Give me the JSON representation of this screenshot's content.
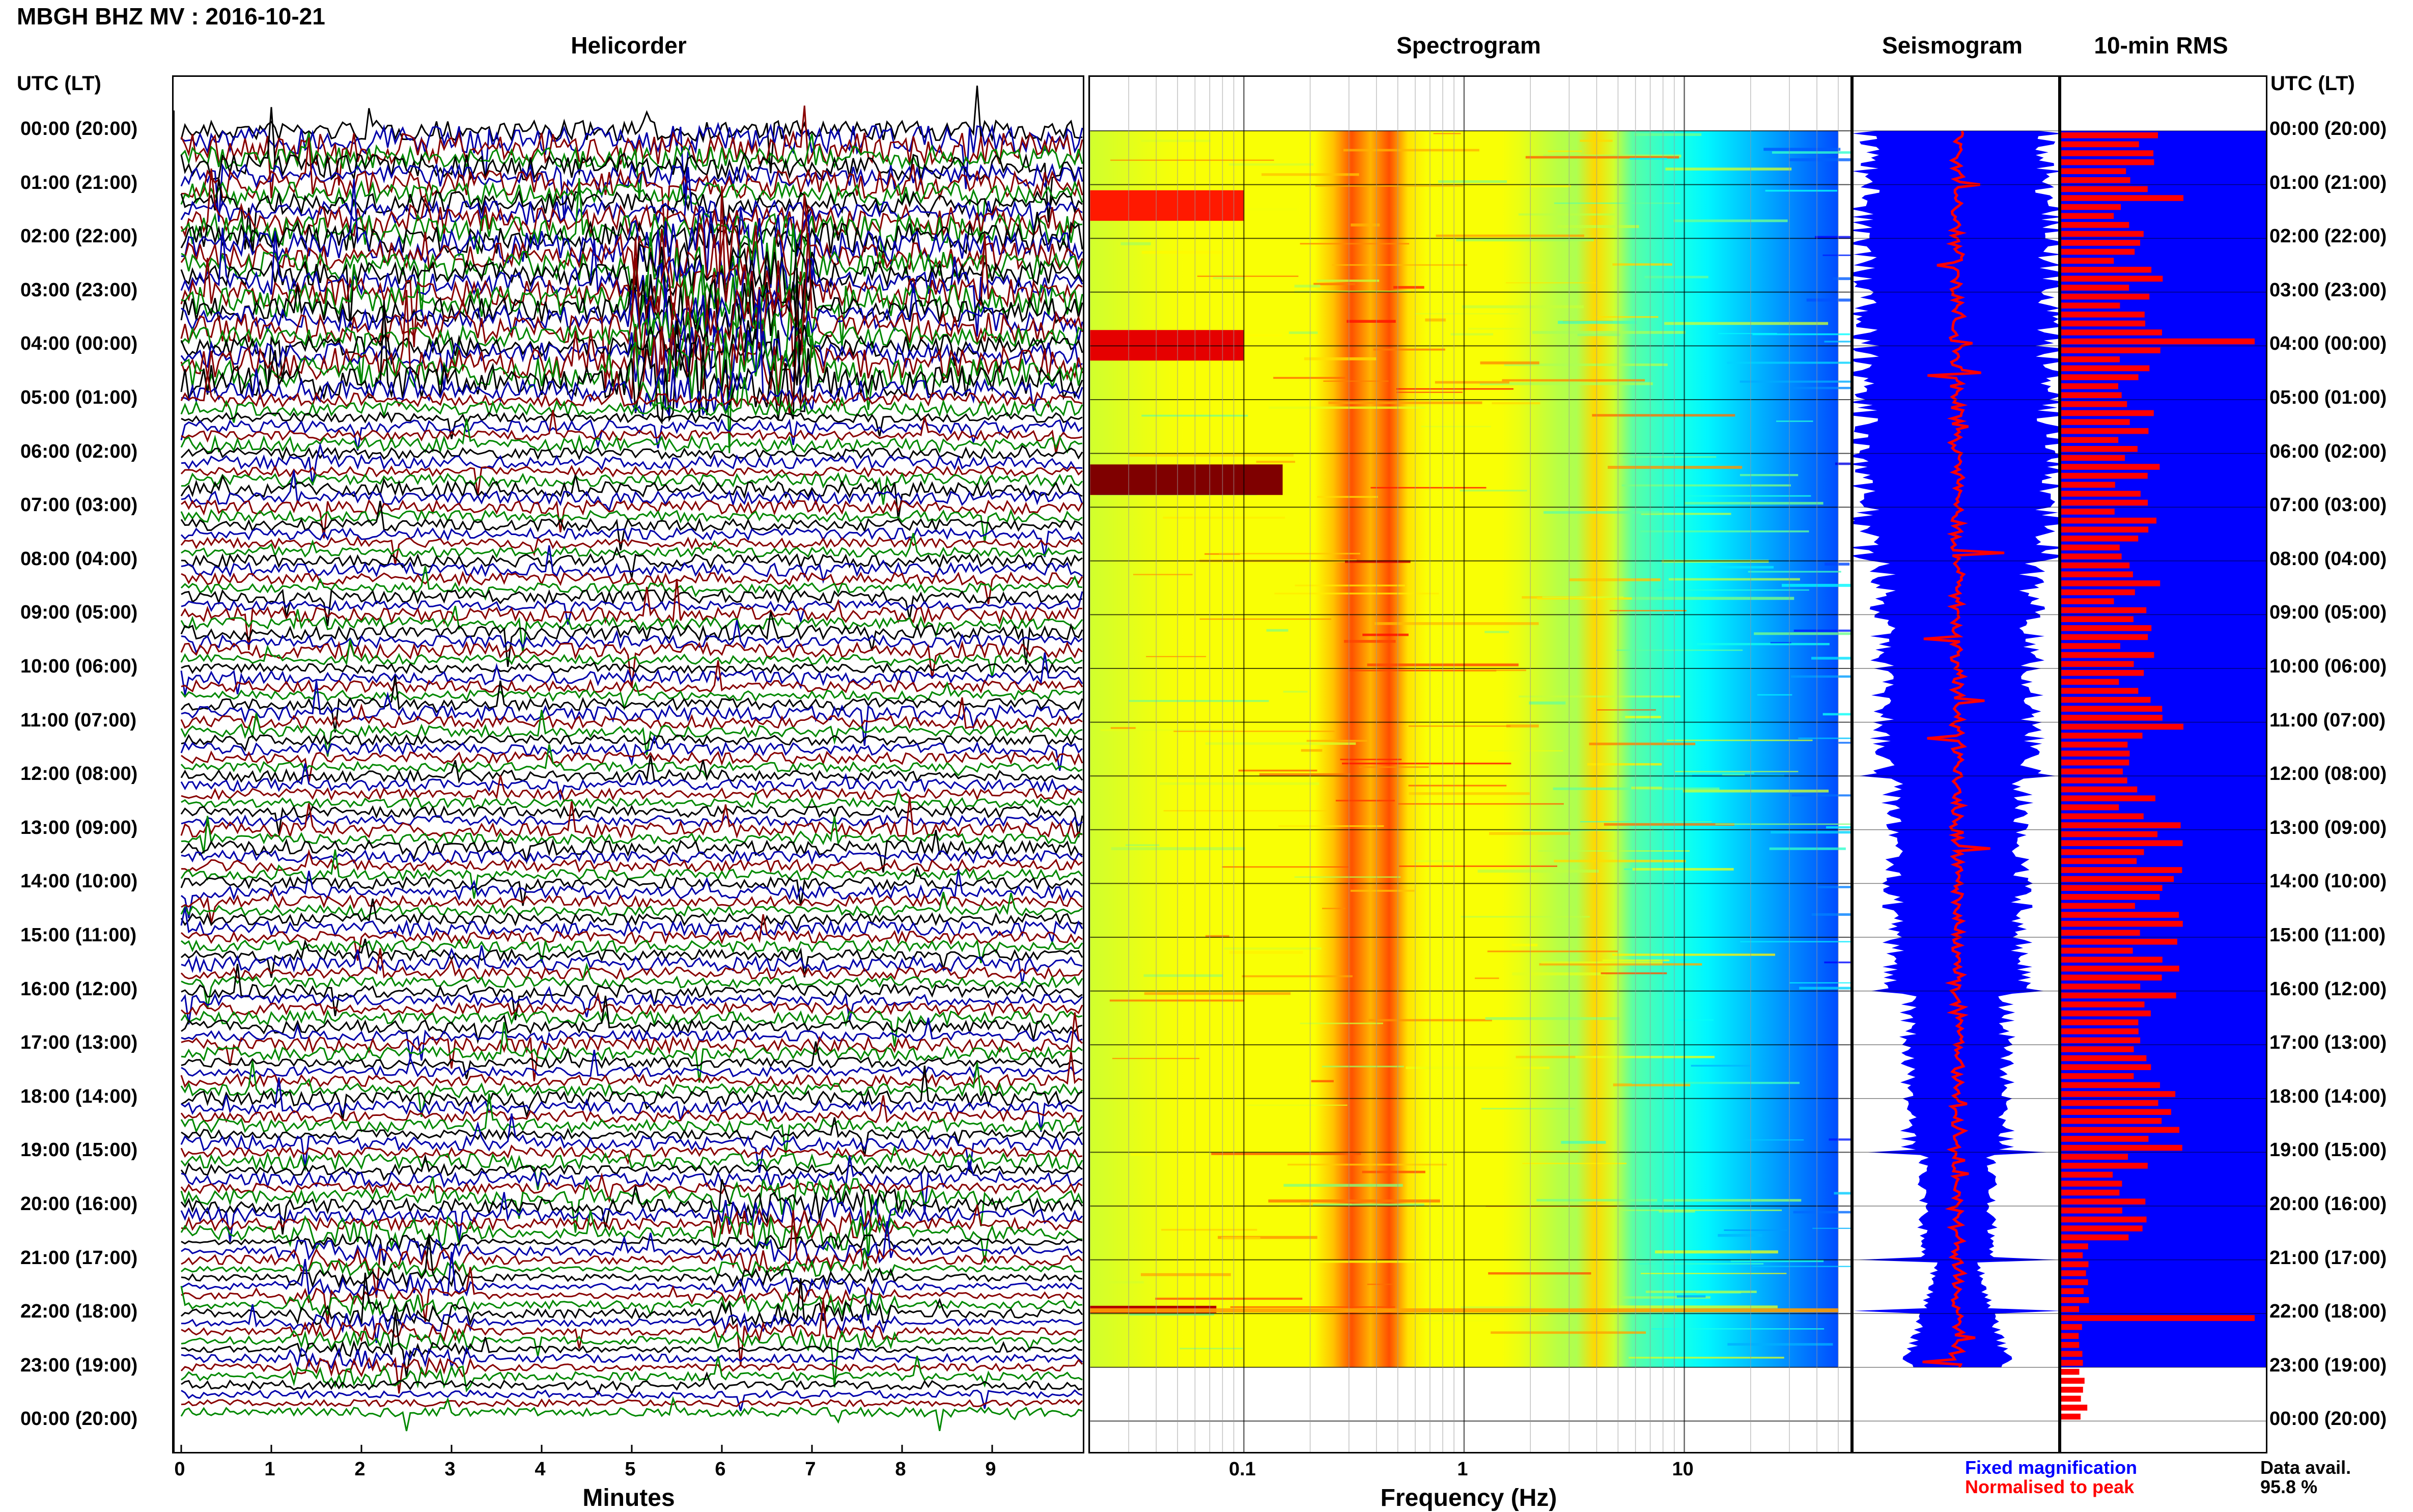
{
  "station_title": "MBGH BHZ MV : 2016-10-21",
  "time_axis_label": "UTC (LT)",
  "time_labels": [
    "00:00 (20:00)",
    "01:00 (21:00)",
    "02:00 (22:00)",
    "03:00 (23:00)",
    "04:00 (00:00)",
    "05:00 (01:00)",
    "06:00 (02:00)",
    "07:00 (03:00)",
    "08:00 (04:00)",
    "09:00 (05:00)",
    "10:00 (06:00)",
    "11:00 (07:00)",
    "12:00 (08:00)",
    "13:00 (09:00)",
    "14:00 (10:00)",
    "15:00 (11:00)",
    "16:00 (12:00)",
    "17:00 (13:00)",
    "18:00 (14:00)",
    "19:00 (15:00)",
    "20:00 (16:00)",
    "21:00 (17:00)",
    "22:00 (18:00)",
    "23:00 (19:00)",
    "00:00 (20:00)"
  ],
  "panels": {
    "helicorder": {
      "title": "Helicorder",
      "xlabel": "Minutes",
      "ticks": [
        "0",
        "1",
        "2",
        "3",
        "4",
        "5",
        "6",
        "7",
        "8",
        "9"
      ]
    },
    "spectrogram": {
      "title": "Spectrogram",
      "xlabel": "Frequency (Hz)",
      "ticks": [
        "0.1",
        "1",
        "10"
      ]
    },
    "seismogram": {
      "title": "Seismogram"
    },
    "rms": {
      "title": "10-min RMS"
    }
  },
  "legend": {
    "fixed": {
      "label": "Fixed magnification",
      "color": "#0000ff"
    },
    "normalised": {
      "label": "Normalised to peak",
      "color": "#ff0000"
    }
  },
  "data_availability": {
    "label": "Data avail.",
    "value": "95.8 %"
  },
  "colors": {
    "trace_cycle": [
      "#000000",
      "#0000aa",
      "#880000",
      "#008800"
    ],
    "seis_fill": "#0000ff",
    "rms_bar": "#ff0000"
  },
  "chart_data": [
    {
      "type": "line",
      "name": "helicorder",
      "title": "Helicorder",
      "xlabel": "Minutes",
      "xlim": [
        0,
        10
      ],
      "rows_per_hour": 6,
      "hours": 24,
      "events": [
        {
          "hour": 21.8,
          "minute": 2.2
        },
        {
          "hour": 21.2,
          "minute": 6.9
        },
        {
          "hour": 3.5,
          "minute": 6.0
        }
      ]
    },
    {
      "type": "heatmap",
      "name": "spectrogram",
      "title": "Spectrogram",
      "xlabel": "Frequency (Hz)",
      "xscale": "log",
      "xlim": [
        0.02,
        50
      ],
      "x_ticks": [
        0.1,
        1,
        10
      ],
      "peak_bands_hz": [
        0.3,
        0.45,
        4.2
      ],
      "colormap": "jet"
    },
    {
      "type": "area",
      "name": "seismogram",
      "title": "Seismogram",
      "series": [
        {
          "name": "Fixed magnification"
        },
        {
          "name": "Normalised to peak"
        }
      ]
    },
    {
      "type": "bar",
      "name": "rms",
      "title": "10-min RMS",
      "orientation": "horizontal",
      "hours": 24,
      "bins_per_hour": 6,
      "peak_hours": [
        3.8,
        21.95
      ]
    }
  ]
}
